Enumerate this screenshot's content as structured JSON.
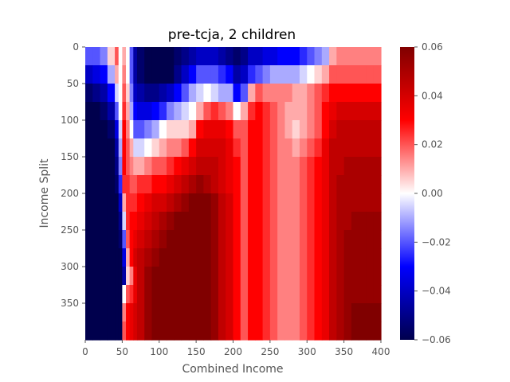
{
  "chart_data": {
    "type": "heatmap",
    "title": "pre-tcja, 2 children",
    "xlabel": "Combined Income",
    "ylabel": "Income Split",
    "xlim": [
      0,
      400
    ],
    "ylim": [
      400,
      0
    ],
    "x_ticks": [
      0,
      50,
      100,
      150,
      200,
      250,
      300,
      350,
      400
    ],
    "y_ticks": [
      0,
      50,
      100,
      150,
      200,
      250,
      300,
      350
    ],
    "colorbar": {
      "colormap": "seismic",
      "vmin": -0.06,
      "vmax": 0.06,
      "ticks": [
        0.06,
        0.04,
        0.02,
        0.0,
        -0.02,
        -0.04,
        -0.06
      ],
      "tick_labels": [
        "0.06",
        "0.04",
        "0.02",
        "0.00",
        "−0.02",
        "−0.04",
        "−0.06"
      ]
    },
    "x_bins": [
      0,
      10,
      20,
      30,
      40,
      45,
      50,
      55,
      60,
      65,
      70,
      80,
      90,
      100,
      110,
      120,
      130,
      140,
      150,
      160,
      170,
      180,
      190,
      200,
      210,
      220,
      230,
      240,
      250,
      260,
      270,
      280,
      290,
      300,
      310,
      320,
      330,
      340,
      350,
      360,
      370,
      380,
      390,
      400
    ],
    "y_bins": [
      0,
      25,
      50,
      75,
      100,
      125,
      150,
      175,
      200,
      225,
      250,
      275,
      300,
      325,
      350,
      375,
      400
    ],
    "z": [
      [
        -0.02,
        -0.02,
        -0.015,
        0.005,
        0.02,
        0.0,
        0.01,
        0.0,
        -0.02,
        -0.045,
        -0.055,
        -0.06,
        -0.06,
        -0.06,
        -0.06,
        -0.055,
        -0.05,
        -0.045,
        -0.04,
        -0.04,
        -0.04,
        -0.045,
        -0.05,
        -0.055,
        -0.05,
        -0.04,
        -0.04,
        -0.035,
        -0.035,
        -0.03,
        -0.03,
        -0.03,
        -0.025,
        -0.02,
        -0.015,
        -0.01,
        0.01,
        0.015,
        0.015,
        0.015,
        0.015,
        0.015,
        0.015
      ],
      [
        -0.04,
        -0.035,
        -0.03,
        -0.01,
        0.01,
        0.0,
        0.015,
        0.0,
        -0.02,
        -0.045,
        -0.055,
        -0.06,
        -0.06,
        -0.06,
        -0.06,
        -0.05,
        -0.04,
        -0.03,
        -0.02,
        -0.02,
        -0.02,
        -0.025,
        -0.03,
        -0.045,
        -0.04,
        -0.025,
        -0.02,
        -0.015,
        -0.01,
        -0.01,
        -0.01,
        -0.01,
        -0.005,
        0.0,
        0.005,
        0.01,
        0.02,
        0.02,
        0.02,
        0.02,
        0.02,
        0.02,
        0.02
      ],
      [
        -0.055,
        -0.05,
        -0.045,
        -0.03,
        -0.005,
        0.0,
        0.02,
        0.005,
        -0.015,
        -0.04,
        -0.045,
        -0.05,
        -0.05,
        -0.045,
        -0.04,
        -0.03,
        -0.02,
        -0.01,
        -0.005,
        0.0,
        -0.005,
        -0.01,
        -0.01,
        -0.03,
        -0.02,
        0.01,
        0.02,
        0.015,
        0.015,
        0.015,
        0.015,
        0.01,
        0.01,
        0.015,
        0.02,
        0.025,
        0.03,
        0.03,
        0.03,
        0.03,
        0.03,
        0.03,
        0.03
      ],
      [
        -0.06,
        -0.06,
        -0.055,
        -0.045,
        -0.02,
        0.0,
        0.025,
        0.01,
        -0.01,
        -0.03,
        -0.035,
        -0.035,
        -0.03,
        -0.025,
        -0.015,
        -0.01,
        -0.005,
        0.0,
        0.01,
        0.02,
        0.025,
        0.02,
        0.015,
        0.0,
        0.01,
        0.025,
        0.03,
        0.025,
        0.02,
        0.015,
        0.01,
        0.01,
        0.01,
        0.015,
        0.02,
        0.03,
        0.035,
        0.04,
        0.04,
        0.04,
        0.04,
        0.04,
        0.04
      ],
      [
        -0.06,
        -0.06,
        -0.06,
        -0.055,
        -0.035,
        -0.005,
        0.03,
        0.015,
        0.0,
        -0.02,
        -0.02,
        -0.015,
        -0.01,
        0.0,
        0.005,
        0.005,
        0.005,
        0.01,
        0.03,
        0.035,
        0.035,
        0.035,
        0.03,
        0.02,
        0.02,
        0.03,
        0.03,
        0.025,
        0.02,
        0.015,
        0.01,
        0.005,
        0.01,
        0.015,
        0.02,
        0.03,
        0.04,
        0.045,
        0.045,
        0.045,
        0.045,
        0.045,
        0.045
      ],
      [
        -0.06,
        -0.06,
        -0.06,
        -0.06,
        -0.045,
        -0.01,
        0.03,
        0.02,
        0.01,
        -0.005,
        -0.005,
        0.0,
        0.005,
        0.01,
        0.015,
        0.015,
        0.02,
        0.03,
        0.04,
        0.04,
        0.04,
        0.04,
        0.035,
        0.025,
        0.02,
        0.03,
        0.03,
        0.025,
        0.02,
        0.015,
        0.015,
        0.01,
        0.015,
        0.02,
        0.025,
        0.035,
        0.045,
        0.045,
        0.045,
        0.045,
        0.045,
        0.045,
        0.045
      ],
      [
        -0.06,
        -0.06,
        -0.06,
        -0.06,
        -0.05,
        -0.015,
        0.03,
        0.02,
        0.015,
        0.01,
        0.01,
        0.015,
        0.02,
        0.02,
        0.025,
        0.03,
        0.035,
        0.04,
        0.045,
        0.045,
        0.045,
        0.04,
        0.035,
        0.03,
        0.02,
        0.03,
        0.03,
        0.025,
        0.02,
        0.015,
        0.015,
        0.015,
        0.02,
        0.025,
        0.03,
        0.035,
        0.045,
        0.045,
        0.05,
        0.05,
        0.05,
        0.05,
        0.05
      ],
      [
        -0.06,
        -0.06,
        -0.06,
        -0.06,
        -0.055,
        -0.025,
        0.025,
        0.025,
        0.02,
        0.02,
        0.025,
        0.025,
        0.03,
        0.03,
        0.035,
        0.04,
        0.045,
        0.05,
        0.055,
        0.05,
        0.045,
        0.04,
        0.035,
        0.03,
        0.02,
        0.03,
        0.03,
        0.025,
        0.02,
        0.015,
        0.015,
        0.015,
        0.02,
        0.025,
        0.03,
        0.035,
        0.045,
        0.05,
        0.05,
        0.05,
        0.05,
        0.05,
        0.05
      ],
      [
        -0.06,
        -0.06,
        -0.06,
        -0.06,
        -0.06,
        -0.04,
        0.01,
        0.025,
        0.025,
        0.025,
        0.03,
        0.035,
        0.04,
        0.04,
        0.045,
        0.05,
        0.055,
        0.06,
        0.06,
        0.06,
        0.055,
        0.045,
        0.04,
        0.03,
        0.02,
        0.03,
        0.03,
        0.025,
        0.02,
        0.015,
        0.015,
        0.015,
        0.02,
        0.025,
        0.03,
        0.035,
        0.045,
        0.05,
        0.05,
        0.05,
        0.05,
        0.05,
        0.05
      ],
      [
        -0.06,
        -0.06,
        -0.06,
        -0.06,
        -0.06,
        -0.05,
        -0.005,
        0.025,
        0.03,
        0.03,
        0.035,
        0.04,
        0.045,
        0.05,
        0.055,
        0.06,
        0.06,
        0.06,
        0.06,
        0.06,
        0.055,
        0.045,
        0.04,
        0.03,
        0.02,
        0.03,
        0.03,
        0.025,
        0.02,
        0.015,
        0.015,
        0.015,
        0.02,
        0.025,
        0.03,
        0.035,
        0.045,
        0.05,
        0.05,
        0.055,
        0.055,
        0.055,
        0.055
      ],
      [
        -0.06,
        -0.06,
        -0.06,
        -0.06,
        -0.06,
        -0.055,
        -0.02,
        0.02,
        0.03,
        0.035,
        0.04,
        0.045,
        0.05,
        0.055,
        0.06,
        0.06,
        0.06,
        0.06,
        0.06,
        0.06,
        0.055,
        0.045,
        0.04,
        0.03,
        0.02,
        0.03,
        0.03,
        0.025,
        0.02,
        0.015,
        0.015,
        0.015,
        0.02,
        0.025,
        0.03,
        0.035,
        0.045,
        0.05,
        0.055,
        0.055,
        0.055,
        0.055,
        0.055
      ],
      [
        -0.06,
        -0.06,
        -0.06,
        -0.06,
        -0.06,
        -0.06,
        -0.035,
        0.01,
        0.03,
        0.04,
        0.045,
        0.05,
        0.055,
        0.06,
        0.06,
        0.06,
        0.06,
        0.06,
        0.06,
        0.06,
        0.055,
        0.045,
        0.04,
        0.03,
        0.02,
        0.03,
        0.03,
        0.025,
        0.02,
        0.015,
        0.015,
        0.015,
        0.02,
        0.025,
        0.03,
        0.035,
        0.045,
        0.05,
        0.055,
        0.055,
        0.055,
        0.055,
        0.055
      ],
      [
        -0.06,
        -0.06,
        -0.06,
        -0.06,
        -0.06,
        -0.06,
        -0.045,
        0.005,
        0.015,
        0.035,
        0.045,
        0.055,
        0.06,
        0.06,
        0.06,
        0.06,
        0.06,
        0.06,
        0.06,
        0.06,
        0.055,
        0.045,
        0.04,
        0.03,
        0.02,
        0.03,
        0.03,
        0.025,
        0.02,
        0.015,
        0.015,
        0.015,
        0.02,
        0.025,
        0.03,
        0.035,
        0.045,
        0.05,
        0.055,
        0.055,
        0.055,
        0.055,
        0.055
      ],
      [
        -0.06,
        -0.06,
        -0.06,
        -0.06,
        -0.06,
        -0.06,
        0.0,
        0.02,
        0.025,
        0.035,
        0.045,
        0.055,
        0.06,
        0.06,
        0.06,
        0.06,
        0.06,
        0.06,
        0.06,
        0.06,
        0.055,
        0.045,
        0.04,
        0.03,
        0.02,
        0.03,
        0.03,
        0.025,
        0.02,
        0.015,
        0.015,
        0.015,
        0.02,
        0.025,
        0.03,
        0.035,
        0.045,
        0.05,
        0.055,
        0.055,
        0.055,
        0.055,
        0.055
      ],
      [
        -0.06,
        -0.06,
        -0.06,
        -0.06,
        -0.06,
        -0.06,
        0.015,
        0.03,
        0.035,
        0.04,
        0.045,
        0.055,
        0.06,
        0.06,
        0.06,
        0.06,
        0.06,
        0.06,
        0.06,
        0.06,
        0.055,
        0.045,
        0.04,
        0.03,
        0.02,
        0.03,
        0.03,
        0.025,
        0.02,
        0.015,
        0.015,
        0.015,
        0.02,
        0.025,
        0.03,
        0.035,
        0.045,
        0.05,
        0.055,
        0.06,
        0.06,
        0.06,
        0.06
      ],
      [
        -0.06,
        -0.06,
        -0.06,
        -0.06,
        -0.06,
        -0.06,
        0.02,
        0.03,
        0.035,
        0.04,
        0.045,
        0.055,
        0.06,
        0.06,
        0.06,
        0.06,
        0.06,
        0.06,
        0.06,
        0.06,
        0.055,
        0.045,
        0.04,
        0.03,
        0.02,
        0.03,
        0.03,
        0.025,
        0.02,
        0.015,
        0.015,
        0.015,
        0.02,
        0.025,
        0.03,
        0.035,
        0.045,
        0.05,
        0.055,
        0.06,
        0.06,
        0.06,
        0.06
      ]
    ]
  }
}
